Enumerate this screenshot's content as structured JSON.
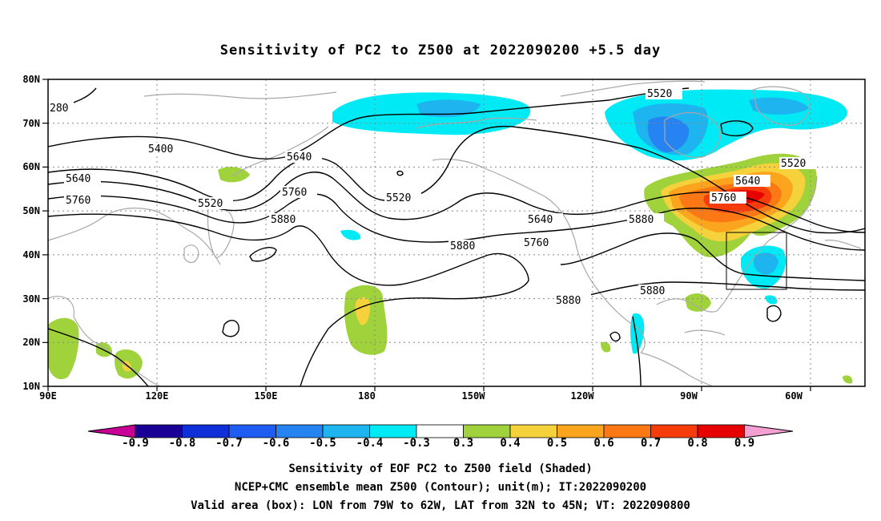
{
  "title": "Sensitivity of PC2 to Z500 at 2022090200 +5.5 day",
  "map": {
    "y_axis_labels": [
      "80N",
      "70N",
      "60N",
      "50N",
      "40N",
      "30N",
      "20N",
      "10N"
    ],
    "x_axis_labels": [
      "90E",
      "120E",
      "150E",
      "180",
      "150W",
      "120W",
      "90W",
      "60W"
    ],
    "contour_labels": [
      "280",
      "5400",
      "5640",
      "5760",
      "5520",
      "5640",
      "5760",
      "5880",
      "5520",
      "5880",
      "5640",
      "5760",
      "5880",
      "5520",
      "5640",
      "5760",
      "5880",
      "5520",
      "5880",
      "5880"
    ],
    "box": {
      "lon_west": "79W",
      "lon_east": "62W",
      "lat_south": "32N",
      "lat_north": "45N"
    }
  },
  "colorbar": {
    "labels": [
      "-0.9",
      "-0.8",
      "-0.7",
      "-0.6",
      "-0.5",
      "-0.4",
      "-0.3",
      "0.3",
      "0.4",
      "0.5",
      "0.6",
      "0.7",
      "0.8",
      "0.9"
    ],
    "colors": [
      "#1a0096",
      "#0f2fd9",
      "#1e5cf2",
      "#2683f2",
      "#1eb4f0",
      "#00eaf5",
      "#ffffff",
      "#a0d23c",
      "#f5d23c",
      "#fba51e",
      "#fb7814",
      "#f53c0a",
      "#e60000"
    ],
    "end_low_color": "#c80096",
    "end_high_color": "#f5a0d2"
  },
  "footer": {
    "line1": "Sensitivity of EOF PC2 to Z500 field (Shaded)",
    "line2": "NCEP+CMC ensemble mean Z500 (Contour); unit(m); IT:2022090200",
    "line3": "Valid area (box): LON from 79W to 62W, LAT from 32N to 45N; VT: 2022090800"
  }
}
